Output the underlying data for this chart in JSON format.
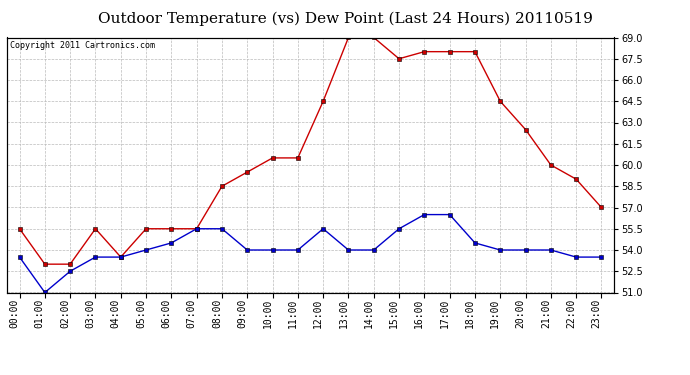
{
  "title": "Outdoor Temperature (vs) Dew Point (Last 24 Hours) 20110519",
  "copyright_text": "Copyright 2011 Cartronics.com",
  "x_labels": [
    "00:00",
    "01:00",
    "02:00",
    "03:00",
    "04:00",
    "05:00",
    "06:00",
    "07:00",
    "08:00",
    "09:00",
    "10:00",
    "11:00",
    "12:00",
    "13:00",
    "14:00",
    "15:00",
    "16:00",
    "17:00",
    "18:00",
    "19:00",
    "20:00",
    "21:00",
    "22:00",
    "23:00"
  ],
  "temp_values": [
    55.5,
    53.0,
    53.0,
    55.5,
    53.5,
    55.5,
    55.5,
    55.5,
    58.5,
    59.5,
    60.5,
    60.5,
    64.5,
    69.0,
    69.0,
    67.5,
    68.0,
    68.0,
    68.0,
    64.5,
    62.5,
    60.0,
    59.0,
    57.0
  ],
  "dew_values": [
    53.5,
    51.0,
    52.5,
    53.5,
    53.5,
    54.0,
    54.5,
    55.5,
    55.5,
    54.0,
    54.0,
    54.0,
    55.5,
    54.0,
    54.0,
    55.5,
    56.5,
    56.5,
    54.5,
    54.0,
    54.0,
    54.0,
    53.5,
    53.5
  ],
  "temp_color": "#cc0000",
  "dew_color": "#0000cc",
  "background_color": "#ffffff",
  "plot_bg_color": "#ffffff",
  "grid_color": "#bbbbbb",
  "ylim": [
    51.0,
    69.0
  ],
  "yticks": [
    51.0,
    52.5,
    54.0,
    55.5,
    57.0,
    58.5,
    60.0,
    61.5,
    63.0,
    64.5,
    66.0,
    67.5,
    69.0
  ],
  "title_fontsize": 11,
  "copyright_fontsize": 6,
  "tick_fontsize": 7
}
